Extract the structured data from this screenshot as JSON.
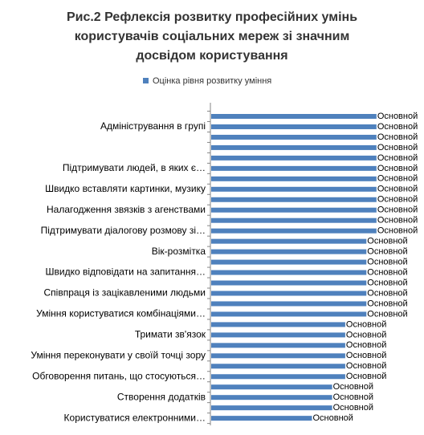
{
  "chart_data": {
    "type": "bar",
    "orientation": "horizontal",
    "title": [
      "Рис.2 Рефлексія розвитку професійних умінь",
      "користувачів соціальних мереж зі значним",
      "досвідом користування"
    ],
    "categories": [
      null,
      "Адміністрування в групі",
      null,
      null,
      null,
      "Підтримувати людей, в яких є…",
      null,
      "Швидко вставляти картинки, музику",
      null,
      "Налагодження звязків з агенствами",
      null,
      "Підтримувати діалогову розмову зі…",
      null,
      "Вік-розмітка",
      null,
      "Швидко відповідати на запитання…",
      null,
      "Співпраця із зацікавленими людьми",
      null,
      "Уміння користуватися комбінаціями…",
      null,
      "Тримати зв'язок",
      null,
      "Уміння переконувати у своїй точці зору",
      null,
      "Обговорення питань, що стосуються…",
      null,
      "Створення додатків",
      null,
      "Користуватися електронними…"
    ],
    "series": [
      {
        "name": "Оцінка рівня розвитку уміння",
        "color": "#4f81bd",
        "values": [
          82,
          82,
          82,
          82,
          82,
          82,
          82,
          82,
          82,
          82,
          82,
          82,
          77,
          77,
          77,
          77,
          77,
          77,
          77,
          77,
          66.5,
          66.5,
          66.5,
          66.5,
          66.5,
          66.5,
          60,
          60,
          60,
          50
        ],
        "value_labels": [
          "Основной",
          "Основной",
          "Основной",
          "Основной",
          "Основной",
          "Основной",
          "Основной",
          "Основной",
          "Основной",
          "Основной",
          "Основной",
          "Основной",
          "Основной",
          "Основной",
          "Основной",
          "Основной",
          "Основной",
          "Основной",
          "Основной",
          "Основной",
          "Основной",
          "Основной",
          "Основной",
          "Основной",
          "Основной",
          "Основной",
          "Основной",
          "Основной",
          "Основной",
          "Основной"
        ]
      }
    ],
    "xlim": [
      0,
      100
    ],
    "legend": "top"
  }
}
